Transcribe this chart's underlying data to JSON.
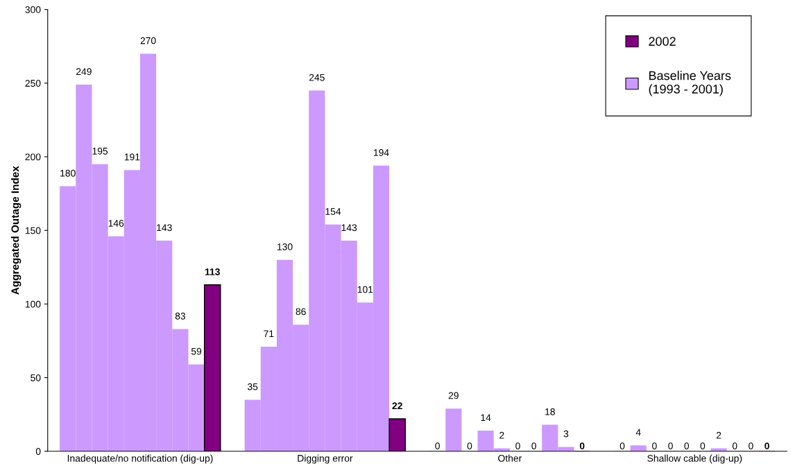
{
  "chart_data": {
    "type": "bar",
    "ylabel": "Aggregated Outage Index",
    "categories": [
      "Inadequate/no notification (dig-up)",
      "Digging error",
      "Other",
      "Shallow cable (dig-up)"
    ],
    "series": [
      {
        "name": "Baseline Years (1993 - 2001)",
        "color": "#cc99ff",
        "values": [
          180,
          35,
          0,
          0
        ]
      },
      {
        "color": "#cc99ff",
        "values": [
          249,
          71,
          29,
          4
        ]
      },
      {
        "color": "#cc99ff",
        "values": [
          195,
          130,
          0,
          0
        ]
      },
      {
        "color": "#cc99ff",
        "values": [
          146,
          86,
          14,
          0
        ]
      },
      {
        "color": "#cc99ff",
        "values": [
          191,
          245,
          2,
          0
        ]
      },
      {
        "color": "#cc99ff",
        "values": [
          270,
          154,
          0,
          0
        ]
      },
      {
        "color": "#cc99ff",
        "values": [
          143,
          143,
          0,
          2
        ]
      },
      {
        "color": "#cc99ff",
        "values": [
          83,
          101,
          18,
          0
        ]
      },
      {
        "color": "#cc99ff",
        "values": [
          59,
          194,
          3,
          0
        ]
      },
      {
        "name": "2002",
        "color": "#800080",
        "values": [
          113,
          22,
          0,
          0
        ]
      }
    ],
    "ylim": [
      0,
      300
    ],
    "yticks": [
      0,
      50,
      100,
      150,
      200,
      250,
      300
    ],
    "data_labels": true,
    "grid": false,
    "legend": "top right"
  }
}
